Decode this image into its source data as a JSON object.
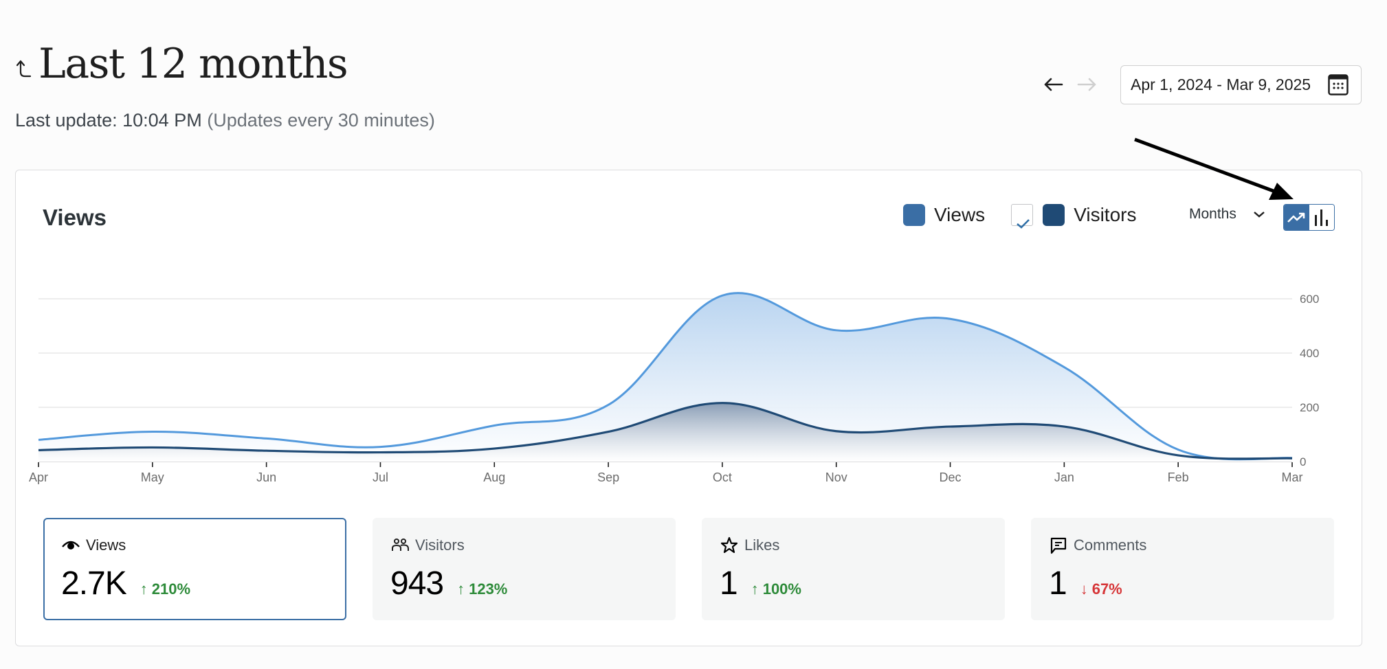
{
  "header": {
    "title": "Last 12 months",
    "back_icon": "corner-up-arrow-icon",
    "last_update_label": "Last update: 10:04 PM",
    "update_frequency": "(Updates every 30 minutes)",
    "prev_label": "←",
    "next_label": "→",
    "date_range": "Apr 1, 2024 - Mar 9, 2025"
  },
  "card": {
    "title": "Views",
    "legend": [
      {
        "label": "Views",
        "color": "#3a6ea5"
      },
      {
        "label": "Visitors",
        "color": "#1f4a75",
        "checked": true
      }
    ],
    "period": "Months",
    "chart_types": [
      {
        "name": "line",
        "active": true
      },
      {
        "name": "bar",
        "active": false
      }
    ]
  },
  "chart_data": {
    "type": "area",
    "title": "Views",
    "categories": [
      "Apr",
      "May",
      "Jun",
      "Jul",
      "Aug",
      "Sep",
      "Oct",
      "Nov",
      "Dec",
      "Jan",
      "Feb",
      "Mar"
    ],
    "series": [
      {
        "name": "Views",
        "color": "#5399dc",
        "values": [
          80,
          110,
          85,
          54,
          133,
          209,
          612,
          484,
          526,
          348,
          44,
          13
        ]
      },
      {
        "name": "Visitors",
        "color": "#1f4a75",
        "values": [
          42,
          52,
          40,
          34,
          48,
          110,
          216,
          112,
          129,
          129,
          23,
          12
        ]
      }
    ],
    "y_ticks": [
      "0",
      "200",
      "400",
      "600"
    ],
    "ylim": [
      0,
      600
    ],
    "grid": true,
    "legend_position": "top-right",
    "xlabel": "",
    "ylabel": ""
  },
  "stats": [
    {
      "label": "Views",
      "icon": "eye-icon",
      "value": "2.7K",
      "change": "210%",
      "direction": "up",
      "selected": true
    },
    {
      "label": "Visitors",
      "icon": "people-icon",
      "value": "943",
      "change": "123%",
      "direction": "up",
      "selected": false
    },
    {
      "label": "Likes",
      "icon": "star-icon",
      "value": "1",
      "change": "100%",
      "direction": "up",
      "selected": false
    },
    {
      "label": "Comments",
      "icon": "comment-icon",
      "value": "1",
      "change": "67%",
      "direction": "down",
      "selected": false
    }
  ],
  "arrows": {
    "up": "↑",
    "down": "↓"
  },
  "colors": {
    "positive": "#2e8b3a",
    "negative": "#d63638",
    "accent": "#3a6ea5"
  }
}
